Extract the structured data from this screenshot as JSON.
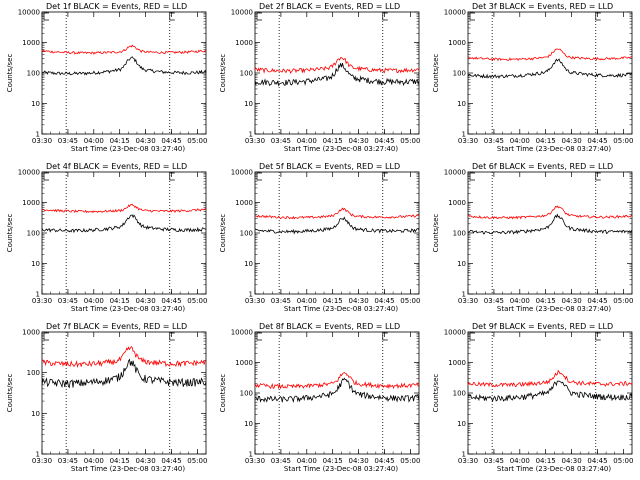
{
  "chart_data": [
    {
      "type": "line",
      "title": "Det 1f BLACK = Events, RED = LLD",
      "xlabel": "Start Time (23-Dec-08 03:27:40)",
      "ylabel": "Counts/sec",
      "yscale": "log",
      "ylim": [
        1,
        10000
      ],
      "xlim": [
        "03:30",
        "05:05"
      ],
      "xticks": [
        "03:30",
        "03:45",
        "04:00",
        "04:15",
        "04:30",
        "04:45",
        "05:00"
      ],
      "yticks": [
        "1",
        "10",
        "100",
        "1000",
        "10000"
      ],
      "vlines": [
        "03:44",
        "04:44"
      ],
      "base_events": 80,
      "base_lld": 420,
      "peak_events": 330,
      "peak_lld": 800,
      "peak_time": "04:22",
      "series": [
        {
          "color": "#000000"
        },
        {
          "color": "#ff0000"
        }
      ]
    },
    {
      "type": "line",
      "title": "Det 2f BLACK = Events, RED = LLD",
      "xlabel": "Start Time (23-Dec-08 03:27:40)",
      "ylabel": "Counts/sec",
      "yscale": "log",
      "ylim": [
        1,
        10000
      ],
      "xlim": [
        "03:30",
        "05:05"
      ],
      "xticks": [
        "03:30",
        "03:45",
        "04:00",
        "04:15",
        "04:30",
        "04:45",
        "05:00"
      ],
      "yticks": [
        "1",
        "10",
        "100",
        "1000",
        "10000"
      ],
      "vlines": [
        "03:44",
        "04:44"
      ],
      "base_events": 40,
      "base_lld": 100,
      "peak_events": 190,
      "peak_lld": 340,
      "peak_time": "04:20",
      "series": [
        {
          "color": "#000000"
        },
        {
          "color": "#ff0000"
        }
      ]
    },
    {
      "type": "line",
      "title": "Det 3f BLACK = Events, RED = LLD",
      "xlabel": "Start Time (23-Dec-08 03:27:40)",
      "ylabel": "Counts/sec",
      "yscale": "log",
      "ylim": [
        1,
        10000
      ],
      "xlim": [
        "03:30",
        "05:05"
      ],
      "xticks": [
        "03:30",
        "03:45",
        "04:00",
        "04:15",
        "04:30",
        "04:45",
        "05:00"
      ],
      "yticks": [
        "1",
        "10",
        "100",
        "1000",
        "10000"
      ],
      "vlines": [
        "03:44",
        "04:44"
      ],
      "base_events": 65,
      "base_lld": 250,
      "peak_events": 280,
      "peak_lld": 640,
      "peak_time": "04:22",
      "series": [
        {
          "color": "#000000"
        },
        {
          "color": "#ff0000"
        }
      ]
    },
    {
      "type": "line",
      "title": "Det 4f BLACK = Events, RED = LLD",
      "xlabel": "Start Time (23-Dec-08 03:27:40)",
      "ylabel": "Counts/sec",
      "yscale": "log",
      "ylim": [
        1,
        10000
      ],
      "xlim": [
        "03:30",
        "05:05"
      ],
      "xticks": [
        "03:30",
        "03:45",
        "04:00",
        "04:15",
        "04:30",
        "04:45",
        "05:00"
      ],
      "yticks": [
        "1",
        "10",
        "100",
        "1000",
        "10000"
      ],
      "vlines": [
        "03:44",
        "04:44"
      ],
      "base_events": 100,
      "base_lld": 470,
      "peak_events": 400,
      "peak_lld": 850,
      "peak_time": "04:22",
      "series": [
        {
          "color": "#000000"
        },
        {
          "color": "#ff0000"
        }
      ]
    },
    {
      "type": "line",
      "title": "Det 5f BLACK = Events, RED = LLD",
      "xlabel": "Start Time (23-Dec-08 03:27:40)",
      "ylabel": "Counts/sec",
      "yscale": "log",
      "ylim": [
        1,
        10000
      ],
      "xlim": [
        "03:30",
        "05:05"
      ],
      "xticks": [
        "03:30",
        "03:45",
        "04:00",
        "04:15",
        "04:30",
        "04:45",
        "05:00"
      ],
      "yticks": [
        "1",
        "10",
        "100",
        "1000",
        "10000"
      ],
      "vlines": [
        "03:44",
        "04:44"
      ],
      "base_events": 95,
      "base_lld": 290,
      "peak_events": 320,
      "peak_lld": 640,
      "peak_time": "04:21",
      "series": [
        {
          "color": "#000000"
        },
        {
          "color": "#ff0000"
        }
      ]
    },
    {
      "type": "line",
      "title": "Det 6f BLACK = Events, RED = LLD",
      "xlabel": "Start Time (23-Dec-08 03:27:40)",
      "ylabel": "Counts/sec",
      "yscale": "log",
      "ylim": [
        1,
        10000
      ],
      "xlim": [
        "03:30",
        "05:05"
      ],
      "xticks": [
        "03:30",
        "03:45",
        "04:00",
        "04:15",
        "04:30",
        "04:45",
        "05:00"
      ],
      "yticks": [
        "1",
        "10",
        "100",
        "1000",
        "10000"
      ],
      "vlines": [
        "03:44",
        "04:44"
      ],
      "base_events": 85,
      "base_lld": 280,
      "peak_events": 380,
      "peak_lld": 780,
      "peak_time": "04:22",
      "series": [
        {
          "color": "#000000"
        },
        {
          "color": "#ff0000"
        }
      ]
    },
    {
      "type": "line",
      "title": "Det 7f BLACK = Events, RED = LLD",
      "xlabel": "Start Time (23-Dec-08 03:27:40)",
      "ylabel": "Counts/sec",
      "yscale": "log",
      "ylim": [
        1,
        1000
      ],
      "xlim": [
        "03:30",
        "05:05"
      ],
      "xticks": [
        "03:30",
        "03:45",
        "04:00",
        "04:15",
        "04:30",
        "04:45",
        "05:00"
      ],
      "yticks": [
        "1",
        "10",
        "100",
        "1000"
      ],
      "vlines": [
        "03:44",
        "04:44"
      ],
      "base_events": 45,
      "base_lld": 140,
      "peak_events": 200,
      "peak_lld": 420,
      "peak_time": "04:21",
      "series": [
        {
          "color": "#000000"
        },
        {
          "color": "#ff0000"
        }
      ]
    },
    {
      "type": "line",
      "title": "Det 8f BLACK = Events, RED = LLD",
      "xlabel": "Start Time (23-Dec-08 03:27:40)",
      "ylabel": "Counts/sec",
      "yscale": "log",
      "ylim": [
        1,
        10000
      ],
      "xlim": [
        "03:30",
        "05:05"
      ],
      "xticks": [
        "03:30",
        "03:45",
        "04:00",
        "04:15",
        "04:30",
        "04:45",
        "05:00"
      ],
      "yticks": [
        "1",
        "10",
        "100",
        "1000",
        "10000"
      ],
      "vlines": [
        "03:44",
        "04:44"
      ],
      "base_events": 50,
      "base_lld": 140,
      "peak_events": 280,
      "peak_lld": 480,
      "peak_time": "04:22",
      "series": [
        {
          "color": "#000000"
        },
        {
          "color": "#ff0000"
        }
      ]
    },
    {
      "type": "line",
      "title": "Det 9f BLACK = Events, RED = LLD",
      "xlabel": "Start Time (23-Dec-08 03:27:40)",
      "ylabel": "Counts/sec",
      "yscale": "log",
      "ylim": [
        1,
        10000
      ],
      "xlim": [
        "03:30",
        "05:05"
      ],
      "xticks": [
        "03:30",
        "03:45",
        "04:00",
        "04:15",
        "04:30",
        "04:45",
        "05:00"
      ],
      "yticks": [
        "1",
        "10",
        "100",
        "1000",
        "10000"
      ],
      "vlines": [
        "03:44",
        "04:44"
      ],
      "base_events": 55,
      "base_lld": 160,
      "peak_events": 290,
      "peak_lld": 520,
      "peak_time": "04:23",
      "series": [
        {
          "color": "#000000"
        },
        {
          "color": "#ff0000"
        }
      ]
    }
  ]
}
